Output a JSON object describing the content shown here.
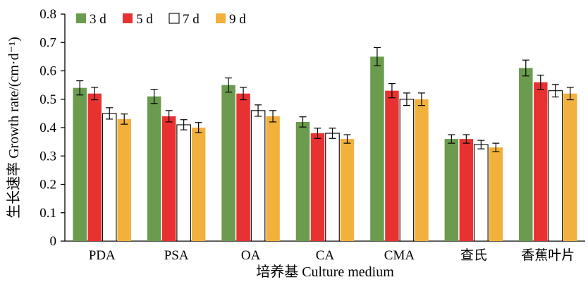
{
  "chart_data": {
    "type": "bar",
    "categories": [
      "PDA",
      "PSA",
      "OA",
      "CA",
      "CMA",
      "查氏",
      "香蕉叶片"
    ],
    "series": [
      {
        "name": "3 d",
        "color": "#6a9b4e",
        "values": [
          0.54,
          0.51,
          0.55,
          0.42,
          0.65,
          0.36,
          0.61
        ],
        "errors": [
          0.025,
          0.025,
          0.025,
          0.018,
          0.032,
          0.015,
          0.028
        ]
      },
      {
        "name": "5 d",
        "color": "#e83232",
        "values": [
          0.52,
          0.44,
          0.52,
          0.38,
          0.53,
          0.36,
          0.56
        ],
        "errors": [
          0.022,
          0.02,
          0.022,
          0.018,
          0.025,
          0.015,
          0.025
        ]
      },
      {
        "name": "7 d",
        "color": "#ffffff",
        "values": [
          0.45,
          0.41,
          0.46,
          0.38,
          0.5,
          0.34,
          0.53
        ],
        "errors": [
          0.02,
          0.018,
          0.02,
          0.018,
          0.022,
          0.015,
          0.022
        ]
      },
      {
        "name": "9 d",
        "color": "#f2b13c",
        "values": [
          0.43,
          0.4,
          0.44,
          0.36,
          0.5,
          0.33,
          0.52
        ],
        "errors": [
          0.018,
          0.018,
          0.02,
          0.015,
          0.022,
          0.015,
          0.022
        ]
      }
    ],
    "xlabel": "培养基 Culture medium",
    "ylabel": "生长速率 Growth rate/(cm·d⁻¹)",
    "ylim": [
      0,
      0.8
    ],
    "yticks": [
      "0",
      "0.1",
      "0.2",
      "0.3",
      "0.4",
      "0.5",
      "0.6",
      "0.7",
      "0.8"
    ],
    "legend_position": "top-left",
    "grid": false
  }
}
